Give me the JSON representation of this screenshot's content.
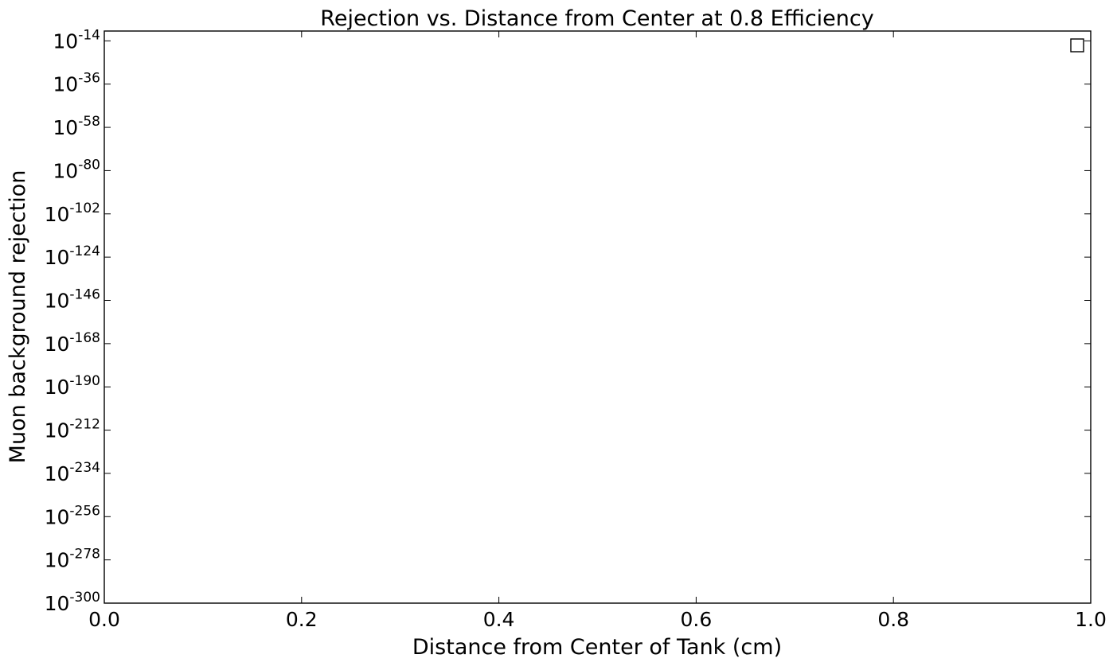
{
  "chart_data": {
    "type": "line",
    "title": "Rejection vs. Distance from Center at 0.8 Efficiency",
    "xlabel": "Distance from Center of Tank (cm)",
    "ylabel": "Muon background rejection",
    "xlim": [
      0.0,
      1.0
    ],
    "x_ticks": [
      0.0,
      0.2,
      0.4,
      0.6,
      0.8,
      1.0
    ],
    "x_tick_labels": [
      "0.0",
      "0.2",
      "0.4",
      "0.6",
      "0.8",
      "1.0"
    ],
    "y_scale": "log",
    "ylim_exponents": [
      -300,
      -9
    ],
    "y_tick_exponents": [
      -14,
      -36,
      -58,
      -80,
      -102,
      -124,
      -146,
      -168,
      -190,
      -212,
      -234,
      -256,
      -278,
      -300
    ],
    "y_tick_base": "10",
    "series": [],
    "legend": {
      "location": "upper right",
      "entries": []
    },
    "grid": false
  }
}
